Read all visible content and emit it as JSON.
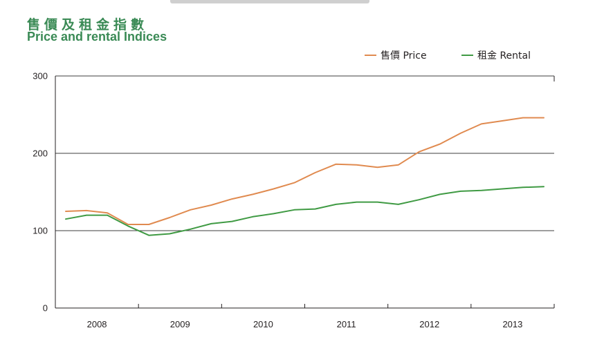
{
  "header": {
    "title_zh": "售價及租金指數",
    "title_en": "Price and rental Indices"
  },
  "colors": {
    "title": "#3a8a55",
    "price": "#e08a4f",
    "rental": "#3f9a43",
    "gridline": "#3d3d3d",
    "axis": "#231f20",
    "top_bar": "#cfcfcf"
  },
  "chart_data": {
    "type": "line",
    "title": "",
    "xlabel": "",
    "ylabel": "",
    "ylim": [
      0,
      300
    ],
    "yticks": [
      0,
      100,
      200,
      300
    ],
    "ytick_labels": [
      "0",
      "100",
      "200",
      "300"
    ],
    "grid": "horizontal",
    "legend_position": "top-right",
    "x_category_labels": [
      "2008",
      "2009",
      "2010",
      "2011",
      "2012",
      "2013"
    ],
    "x_points_per_year": 4,
    "series": [
      {
        "name": "售價 Price",
        "color": "#e08a4f",
        "values": [
          125,
          126,
          123,
          108,
          108,
          117,
          127,
          133,
          141,
          147,
          154,
          162,
          175,
          186,
          185,
          182,
          185,
          202,
          212,
          226,
          238,
          242,
          246,
          246
        ]
      },
      {
        "name": "租金 Rental",
        "color": "#3f9a43",
        "values": [
          115,
          120,
          120,
          106,
          94,
          96,
          102,
          109,
          112,
          118,
          122,
          127,
          128,
          134,
          137,
          137,
          134,
          140,
          147,
          151,
          152,
          154,
          156,
          157
        ]
      }
    ]
  }
}
